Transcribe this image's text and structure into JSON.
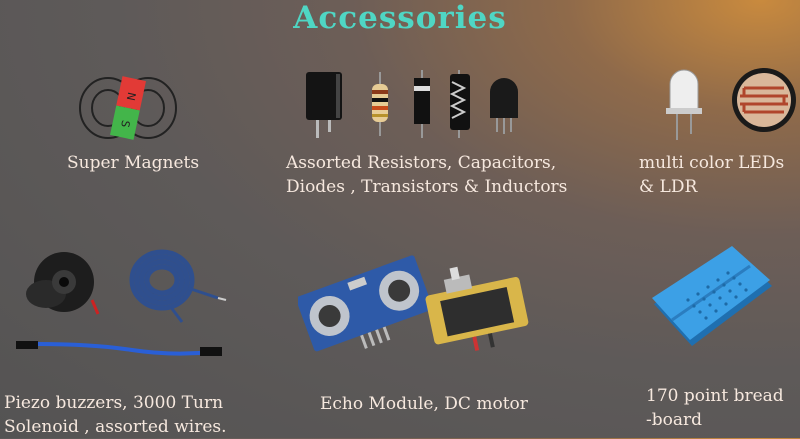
{
  "title": "Accessories",
  "items": [
    {
      "name": "super-magnets",
      "lines": [
        "Super Magnets"
      ],
      "icon": "magnet-icon",
      "magnet_labels": [
        "N",
        "S"
      ]
    },
    {
      "name": "passive-components",
      "lines": [
        "Assorted Resistors, Capacitors,",
        "Diodes , Transistors & Inductors"
      ],
      "icon": "components-icon"
    },
    {
      "name": "leds-ldr",
      "lines": [
        "multi color LEDs",
        "& LDR"
      ],
      "icon": "led-ldr-icon"
    },
    {
      "name": "buzzer-solenoid-wires",
      "lines": [
        "Piezo buzzers, 3000 Turn",
        "Solenoid , assorted wires."
      ],
      "icon": "buzzer-solenoid-icon"
    },
    {
      "name": "echo-dc-motor",
      "lines": [
        "Echo Module, DC motor"
      ],
      "icon": "echo-motor-icon"
    },
    {
      "name": "breadboard",
      "lines": [
        "170 point bread",
        "-board"
      ],
      "icon": "breadboard-icon"
    }
  ],
  "colors": {
    "title": "#4fd6c4",
    "caption": "#f6e8de"
  }
}
